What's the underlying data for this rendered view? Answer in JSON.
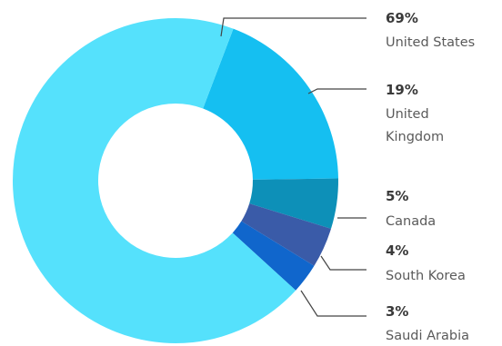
{
  "chart_data": {
    "type": "pie",
    "title": "",
    "donut": true,
    "categories": [
      "United States",
      "United Kingdom",
      "Canada",
      "South Korea",
      "Saudi Arabia"
    ],
    "values": [
      69,
      19,
      5,
      4,
      3
    ],
    "percent_labels": [
      "69%",
      "19%",
      "5%",
      "4%",
      "3%"
    ],
    "name_labels": [
      [
        "United States"
      ],
      [
        "United",
        "Kingdom"
      ],
      [
        "Canada"
      ],
      [
        "South Korea"
      ],
      [
        "Saudi Arabia"
      ]
    ],
    "colors": [
      "#55e1fc",
      "#15bff1",
      "#0d90b8",
      "#3a5ba8",
      "#1066cc"
    ],
    "legend": "none"
  }
}
